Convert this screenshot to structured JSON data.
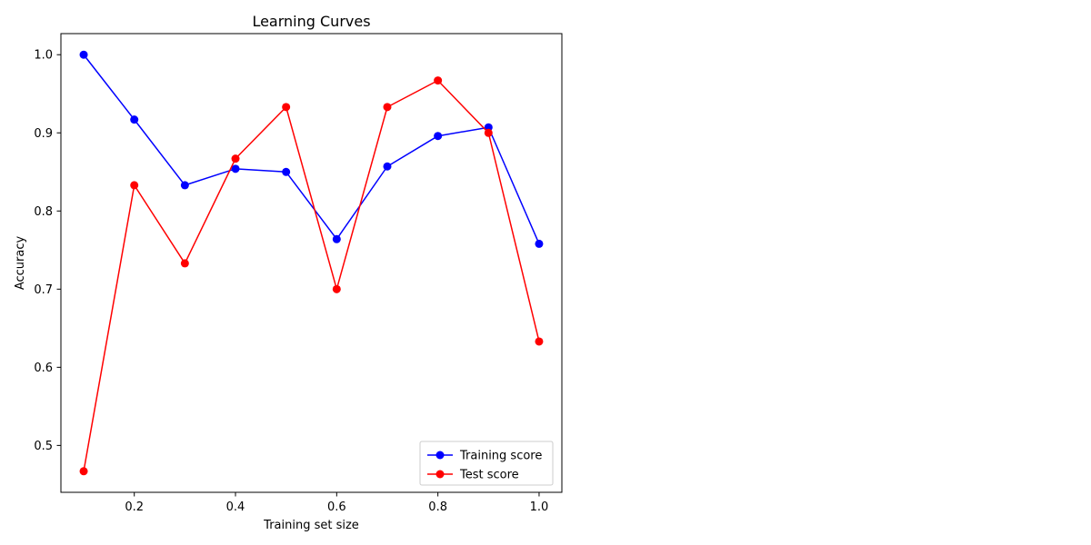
{
  "chart_data": {
    "type": "line",
    "title": "Learning Curves",
    "xlabel": "Training set size",
    "ylabel": "Accuracy",
    "xlim": [
      0.055,
      1.045
    ],
    "ylim": [
      0.44,
      1.027
    ],
    "xticks": [
      0.2,
      0.4,
      0.6,
      0.8,
      1.0
    ],
    "xtick_labels": [
      "0.2",
      "0.4",
      "0.6",
      "0.8",
      "1.0"
    ],
    "yticks": [
      0.5,
      0.6,
      0.7,
      0.8,
      0.9,
      1.0
    ],
    "ytick_labels": [
      "0.5",
      "0.6",
      "0.7",
      "0.8",
      "0.9",
      "1.0"
    ],
    "grid": false,
    "legend_position": "bottom-right",
    "x": [
      0.1,
      0.2,
      0.3,
      0.4,
      0.5,
      0.6,
      0.7,
      0.8,
      0.9,
      1.0
    ],
    "series": [
      {
        "name": "Training score",
        "color": "#0000ff",
        "marker": "circle",
        "values": [
          1.0,
          0.917,
          0.833,
          0.854,
          0.85,
          0.764,
          0.857,
          0.896,
          0.907,
          0.758
        ]
      },
      {
        "name": "Test score",
        "color": "#ff0000",
        "marker": "circle",
        "values": [
          0.467,
          0.833,
          0.733,
          0.867,
          0.933,
          0.7,
          0.933,
          0.967,
          0.9,
          0.633
        ]
      }
    ]
  }
}
